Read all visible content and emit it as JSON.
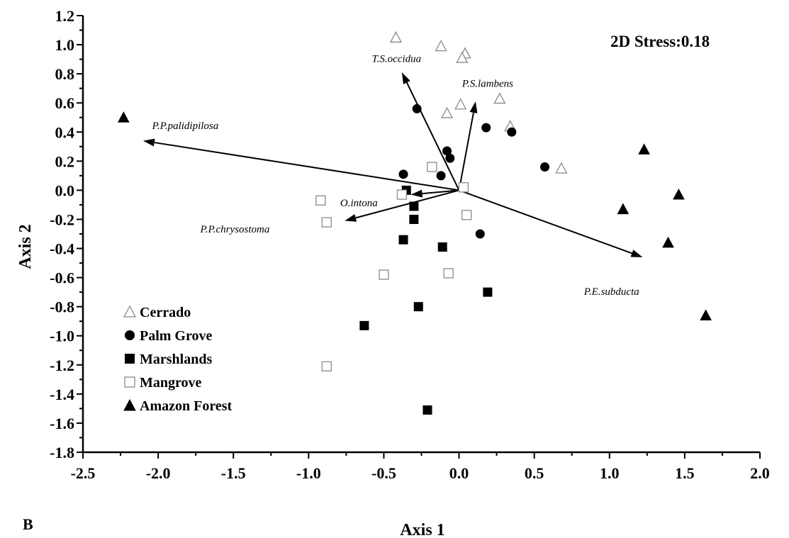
{
  "chart_data": {
    "type": "scatter",
    "title": "",
    "xlabel": "Axis 1",
    "ylabel": "Axis 2",
    "panel_label": "B",
    "annotation": "2D Stress:0.18",
    "xlim": [
      -2.5,
      2.0
    ],
    "ylim": [
      -1.8,
      1.2
    ],
    "x_ticks": [
      "-2.5",
      "-2.0",
      "-1.5",
      "-1.0",
      "-0.5",
      "0.0",
      "0.5",
      "1.0",
      "1.5",
      "2.0"
    ],
    "y_ticks": [
      "1.2",
      "1.0",
      "0.8",
      "0.6",
      "0.4",
      "0.2",
      "0.0",
      "-0.2",
      "-0.4",
      "-0.6",
      "-0.8",
      "-1.0",
      "-1.2",
      "-1.4",
      "-1.6",
      "-1.8"
    ],
    "grid": false,
    "legend_position": "bottom-left",
    "series": [
      {
        "name": "Cerrado",
        "marker": "triangle-open",
        "points": [
          [
            -0.42,
            1.05
          ],
          [
            -0.12,
            0.99
          ],
          [
            0.04,
            0.94
          ],
          [
            0.02,
            0.91
          ],
          [
            0.01,
            0.59
          ],
          [
            -0.08,
            0.53
          ],
          [
            0.27,
            0.63
          ],
          [
            0.34,
            0.44
          ],
          [
            0.68,
            0.15
          ]
        ]
      },
      {
        "name": "Palm Grove",
        "marker": "circle-filled",
        "points": [
          [
            -0.28,
            0.56
          ],
          [
            0.18,
            0.43
          ],
          [
            0.35,
            0.4
          ],
          [
            -0.08,
            0.27
          ],
          [
            -0.06,
            0.22
          ],
          [
            -0.37,
            0.11
          ],
          [
            -0.12,
            0.1
          ],
          [
            0.57,
            0.16
          ],
          [
            0.14,
            -0.3
          ]
        ]
      },
      {
        "name": "Marshlands",
        "marker": "square-filled",
        "points": [
          [
            -0.35,
            0.0
          ],
          [
            -0.3,
            -0.11
          ],
          [
            -0.3,
            -0.2
          ],
          [
            -0.37,
            -0.34
          ],
          [
            -0.11,
            -0.39
          ],
          [
            0.19,
            -0.7
          ],
          [
            -0.27,
            -0.8
          ],
          [
            -0.63,
            -0.93
          ],
          [
            -0.21,
            -1.51
          ]
        ]
      },
      {
        "name": "Mangrove",
        "marker": "square-open",
        "points": [
          [
            -0.18,
            0.16
          ],
          [
            0.03,
            0.02
          ],
          [
            -0.38,
            -0.03
          ],
          [
            -0.92,
            -0.07
          ],
          [
            -0.88,
            -0.22
          ],
          [
            0.05,
            -0.17
          ],
          [
            -0.5,
            -0.58
          ],
          [
            -0.07,
            -0.57
          ],
          [
            -0.88,
            -1.21
          ]
        ]
      },
      {
        "name": "Amazon Forest",
        "marker": "triangle-filled",
        "points": [
          [
            -2.23,
            0.5
          ],
          [
            1.23,
            0.28
          ],
          [
            1.46,
            -0.03
          ],
          [
            1.09,
            -0.13
          ],
          [
            1.39,
            -0.36
          ],
          [
            1.64,
            -0.86
          ]
        ]
      }
    ],
    "vectors": [
      {
        "label": "T.S.occidua",
        "end": [
          -0.38,
          0.81
        ],
        "label_pos": [
          -0.58,
          0.88
        ]
      },
      {
        "label": "P.S.lambens",
        "end": [
          0.11,
          0.61
        ],
        "label_pos": [
          0.02,
          0.71
        ]
      },
      {
        "label": "P.P.palidipilosa",
        "end": [
          -2.1,
          0.34
        ],
        "label_pos": [
          -2.04,
          0.42
        ]
      },
      {
        "label": "O.intona",
        "end": [
          -0.32,
          -0.03
        ],
        "label_pos": [
          -0.79,
          -0.11
        ]
      },
      {
        "label": "P.P.chrysostoma",
        "end": [
          -0.76,
          -0.21
        ],
        "label_pos": [
          -1.72,
          -0.29
        ]
      },
      {
        "label": "P.E.subducta",
        "end": [
          1.22,
          -0.46
        ],
        "label_pos": [
          0.83,
          -0.72
        ]
      }
    ]
  }
}
